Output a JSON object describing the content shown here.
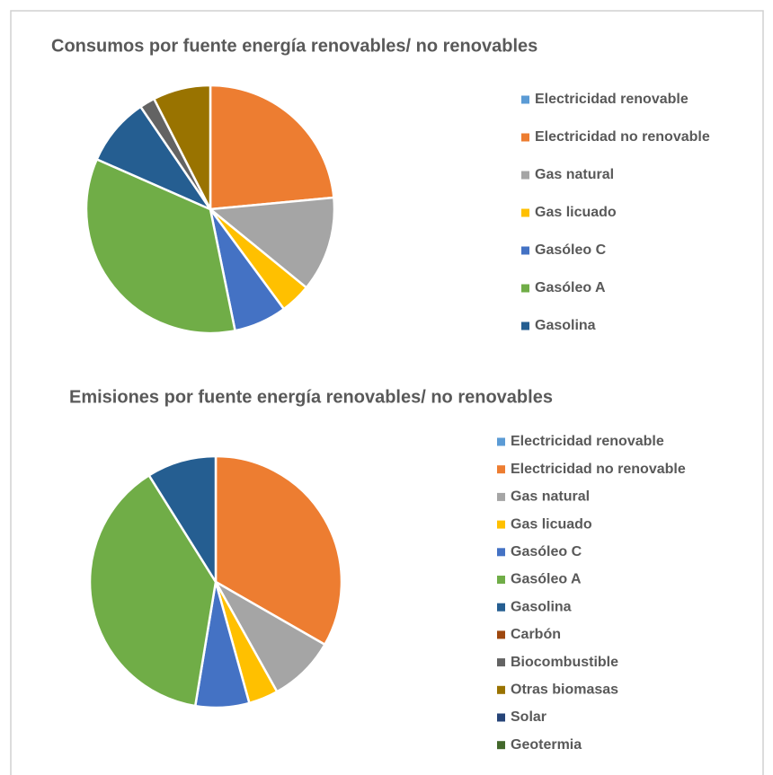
{
  "chart_data": [
    {
      "type": "pie",
      "title": "Consumos por fuente energía renovables/ no renovables",
      "categories": [
        "Electricidad renovable",
        "Electricidad no renovable",
        "Gas natural",
        "Gas licuado",
        "Gasóleo C",
        "Gasóleo A",
        "Gasolina",
        null,
        null
      ],
      "values": [
        0,
        23.5,
        12.4,
        4,
        6.9,
        34.8,
        8.9,
        2,
        7.5
      ],
      "colors": [
        "#5b9bd5",
        "#ed7d31",
        "#a5a5a5",
        "#ffc000",
        "#4472c4",
        "#70ad47",
        "#255e91",
        "#636363",
        "#997300"
      ],
      "legend": "right"
    },
    {
      "type": "pie",
      "title": "Emisiones por fuente energía renovables/ no renovables",
      "categories": [
        "Electricidad renovable",
        "Electricidad no renovable",
        "Gas natural",
        "Gas licuado",
        "Gasóleo C",
        "Gasóleo A",
        "Gasolina",
        "Carbón",
        "Biocombustible",
        "Otras biomasas",
        "Solar",
        "Geotermia"
      ],
      "values": [
        0,
        33.3,
        8.6,
        3.8,
        6.9,
        38.5,
        8.9,
        0,
        0,
        0,
        0,
        0
      ],
      "colors": [
        "#5b9bd5",
        "#ed7d31",
        "#a5a5a5",
        "#ffc000",
        "#4472c4",
        "#70ad47",
        "#255e91",
        "#9e480e",
        "#636363",
        "#997300",
        "#264478",
        "#43682b"
      ],
      "legend": "right"
    }
  ]
}
